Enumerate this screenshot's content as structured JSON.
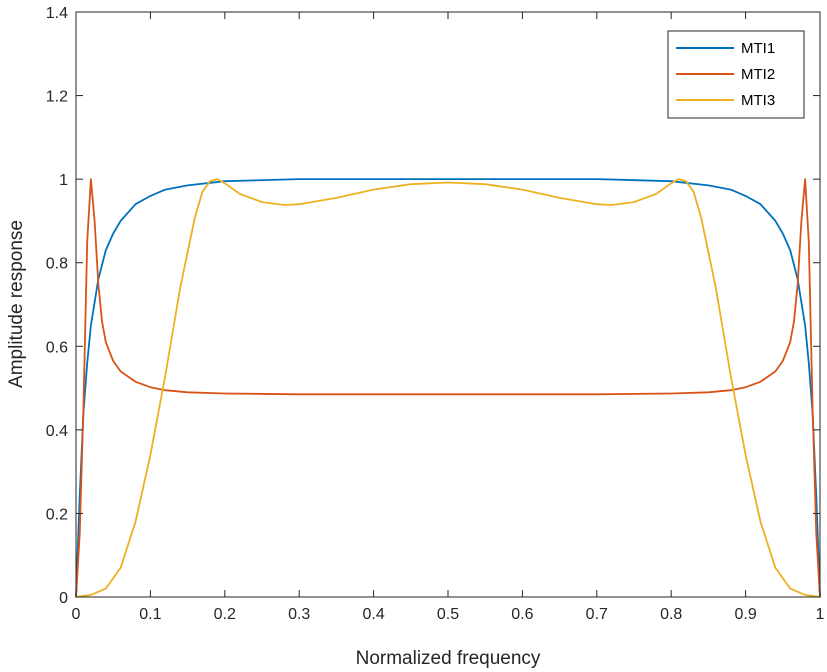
{
  "chart_data": {
    "type": "line",
    "xlabel": "Normalized frequency",
    "ylabel": "Amplitude response",
    "xlim": [
      0,
      1
    ],
    "ylim": [
      0,
      1.4
    ],
    "xticks": [
      "0",
      "0.1",
      "0.2",
      "0.3",
      "0.4",
      "0.5",
      "0.6",
      "0.7",
      "0.8",
      "0.9",
      "1"
    ],
    "yticks": [
      "0",
      "0.2",
      "0.4",
      "0.6",
      "0.8",
      "1",
      "1.2",
      "1.4"
    ],
    "grid": false,
    "legend_position": "top-right",
    "series": [
      {
        "name": "MTI1",
        "color": "#0072BD",
        "x": [
          0,
          0.005,
          0.01,
          0.015,
          0.02,
          0.03,
          0.04,
          0.05,
          0.06,
          0.08,
          0.1,
          0.12,
          0.15,
          0.2,
          0.3,
          0.4,
          0.5,
          0.6,
          0.7,
          0.8,
          0.85,
          0.88,
          0.9,
          0.92,
          0.94,
          0.95,
          0.96,
          0.97,
          0.98,
          0.985,
          0.99,
          0.995,
          1
        ],
        "y": [
          0,
          0.24,
          0.44,
          0.56,
          0.65,
          0.76,
          0.83,
          0.87,
          0.9,
          0.94,
          0.96,
          0.975,
          0.985,
          0.995,
          1.0,
          1.0,
          1.0,
          1.0,
          1.0,
          0.995,
          0.985,
          0.975,
          0.96,
          0.94,
          0.9,
          0.87,
          0.83,
          0.76,
          0.65,
          0.56,
          0.44,
          0.24,
          0
        ]
      },
      {
        "name": "MTI2",
        "color": "#D95319",
        "x": [
          0,
          0.005,
          0.01,
          0.015,
          0.02,
          0.025,
          0.03,
          0.035,
          0.04,
          0.05,
          0.06,
          0.08,
          0.1,
          0.12,
          0.15,
          0.2,
          0.3,
          0.4,
          0.5,
          0.6,
          0.7,
          0.8,
          0.85,
          0.88,
          0.9,
          0.92,
          0.94,
          0.95,
          0.96,
          0.965,
          0.97,
          0.975,
          0.98,
          0.985,
          0.99,
          0.995,
          1
        ],
        "y": [
          0,
          0.15,
          0.45,
          0.85,
          1.0,
          0.9,
          0.75,
          0.66,
          0.61,
          0.565,
          0.54,
          0.515,
          0.502,
          0.495,
          0.49,
          0.487,
          0.485,
          0.485,
          0.485,
          0.485,
          0.485,
          0.487,
          0.49,
          0.495,
          0.502,
          0.515,
          0.54,
          0.565,
          0.61,
          0.66,
          0.75,
          0.9,
          1.0,
          0.85,
          0.45,
          0.15,
          0
        ]
      },
      {
        "name": "MTI3",
        "color": "#EDB120",
        "x": [
          0,
          0.02,
          0.04,
          0.06,
          0.08,
          0.1,
          0.12,
          0.14,
          0.16,
          0.17,
          0.18,
          0.19,
          0.2,
          0.22,
          0.25,
          0.28,
          0.3,
          0.35,
          0.4,
          0.45,
          0.5,
          0.55,
          0.6,
          0.65,
          0.7,
          0.72,
          0.75,
          0.78,
          0.8,
          0.81,
          0.82,
          0.83,
          0.84,
          0.86,
          0.88,
          0.9,
          0.92,
          0.94,
          0.96,
          0.98,
          1
        ],
        "y": [
          0,
          0.005,
          0.02,
          0.07,
          0.18,
          0.34,
          0.53,
          0.74,
          0.91,
          0.97,
          0.995,
          1.0,
          0.99,
          0.965,
          0.945,
          0.938,
          0.94,
          0.955,
          0.975,
          0.988,
          0.992,
          0.988,
          0.975,
          0.955,
          0.94,
          0.938,
          0.945,
          0.965,
          0.99,
          1.0,
          0.995,
          0.97,
          0.91,
          0.74,
          0.53,
          0.34,
          0.18,
          0.07,
          0.02,
          0.005,
          0
        ]
      }
    ]
  }
}
